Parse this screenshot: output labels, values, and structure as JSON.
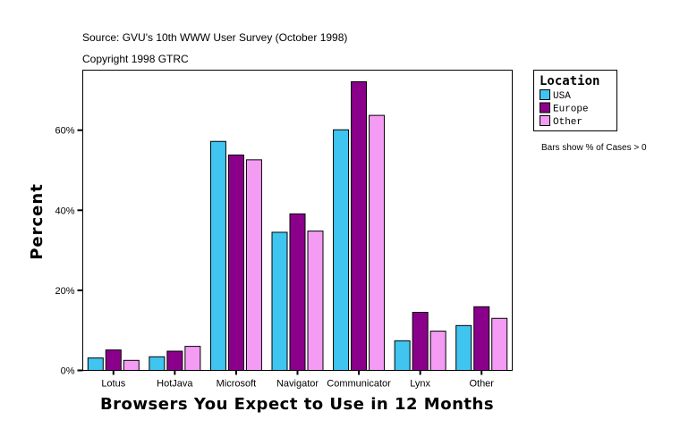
{
  "chart_data": {
    "type": "bar",
    "title": "Source: GVU's 10th WWW User Survey (October 1998)",
    "subtitle": "Copyright 1998 GTRC",
    "xlabel": "Browsers You Expect to Use in 12 Months",
    "ylabel": "Percent",
    "ylim": [
      0,
      75
    ],
    "yticks": [
      0,
      20,
      40,
      60
    ],
    "ytick_labels": [
      "0%",
      "20%",
      "40%",
      "60%"
    ],
    "categories": [
      "Lotus",
      "HotJava",
      "Microsoft",
      "Navigator",
      "Communicator",
      "Lynx",
      "Other"
    ],
    "series": [
      {
        "name": "USA",
        "color": "#40c4f0",
        "values": [
          3.1,
          3.4,
          57.2,
          34.5,
          60.1,
          7.4,
          11.2
        ]
      },
      {
        "name": "Europe",
        "color": "#8b008b",
        "values": [
          5.1,
          4.8,
          53.8,
          39.1,
          72.1,
          14.5,
          15.9
        ]
      },
      {
        "name": "Other",
        "color": "#f49cf4",
        "values": [
          2.5,
          6.0,
          52.6,
          34.8,
          63.7,
          9.8,
          13.0
        ]
      }
    ],
    "legend": {
      "title": "Location",
      "placement": "top-right"
    },
    "note": "Bars show % of Cases > 0",
    "grid": false
  }
}
